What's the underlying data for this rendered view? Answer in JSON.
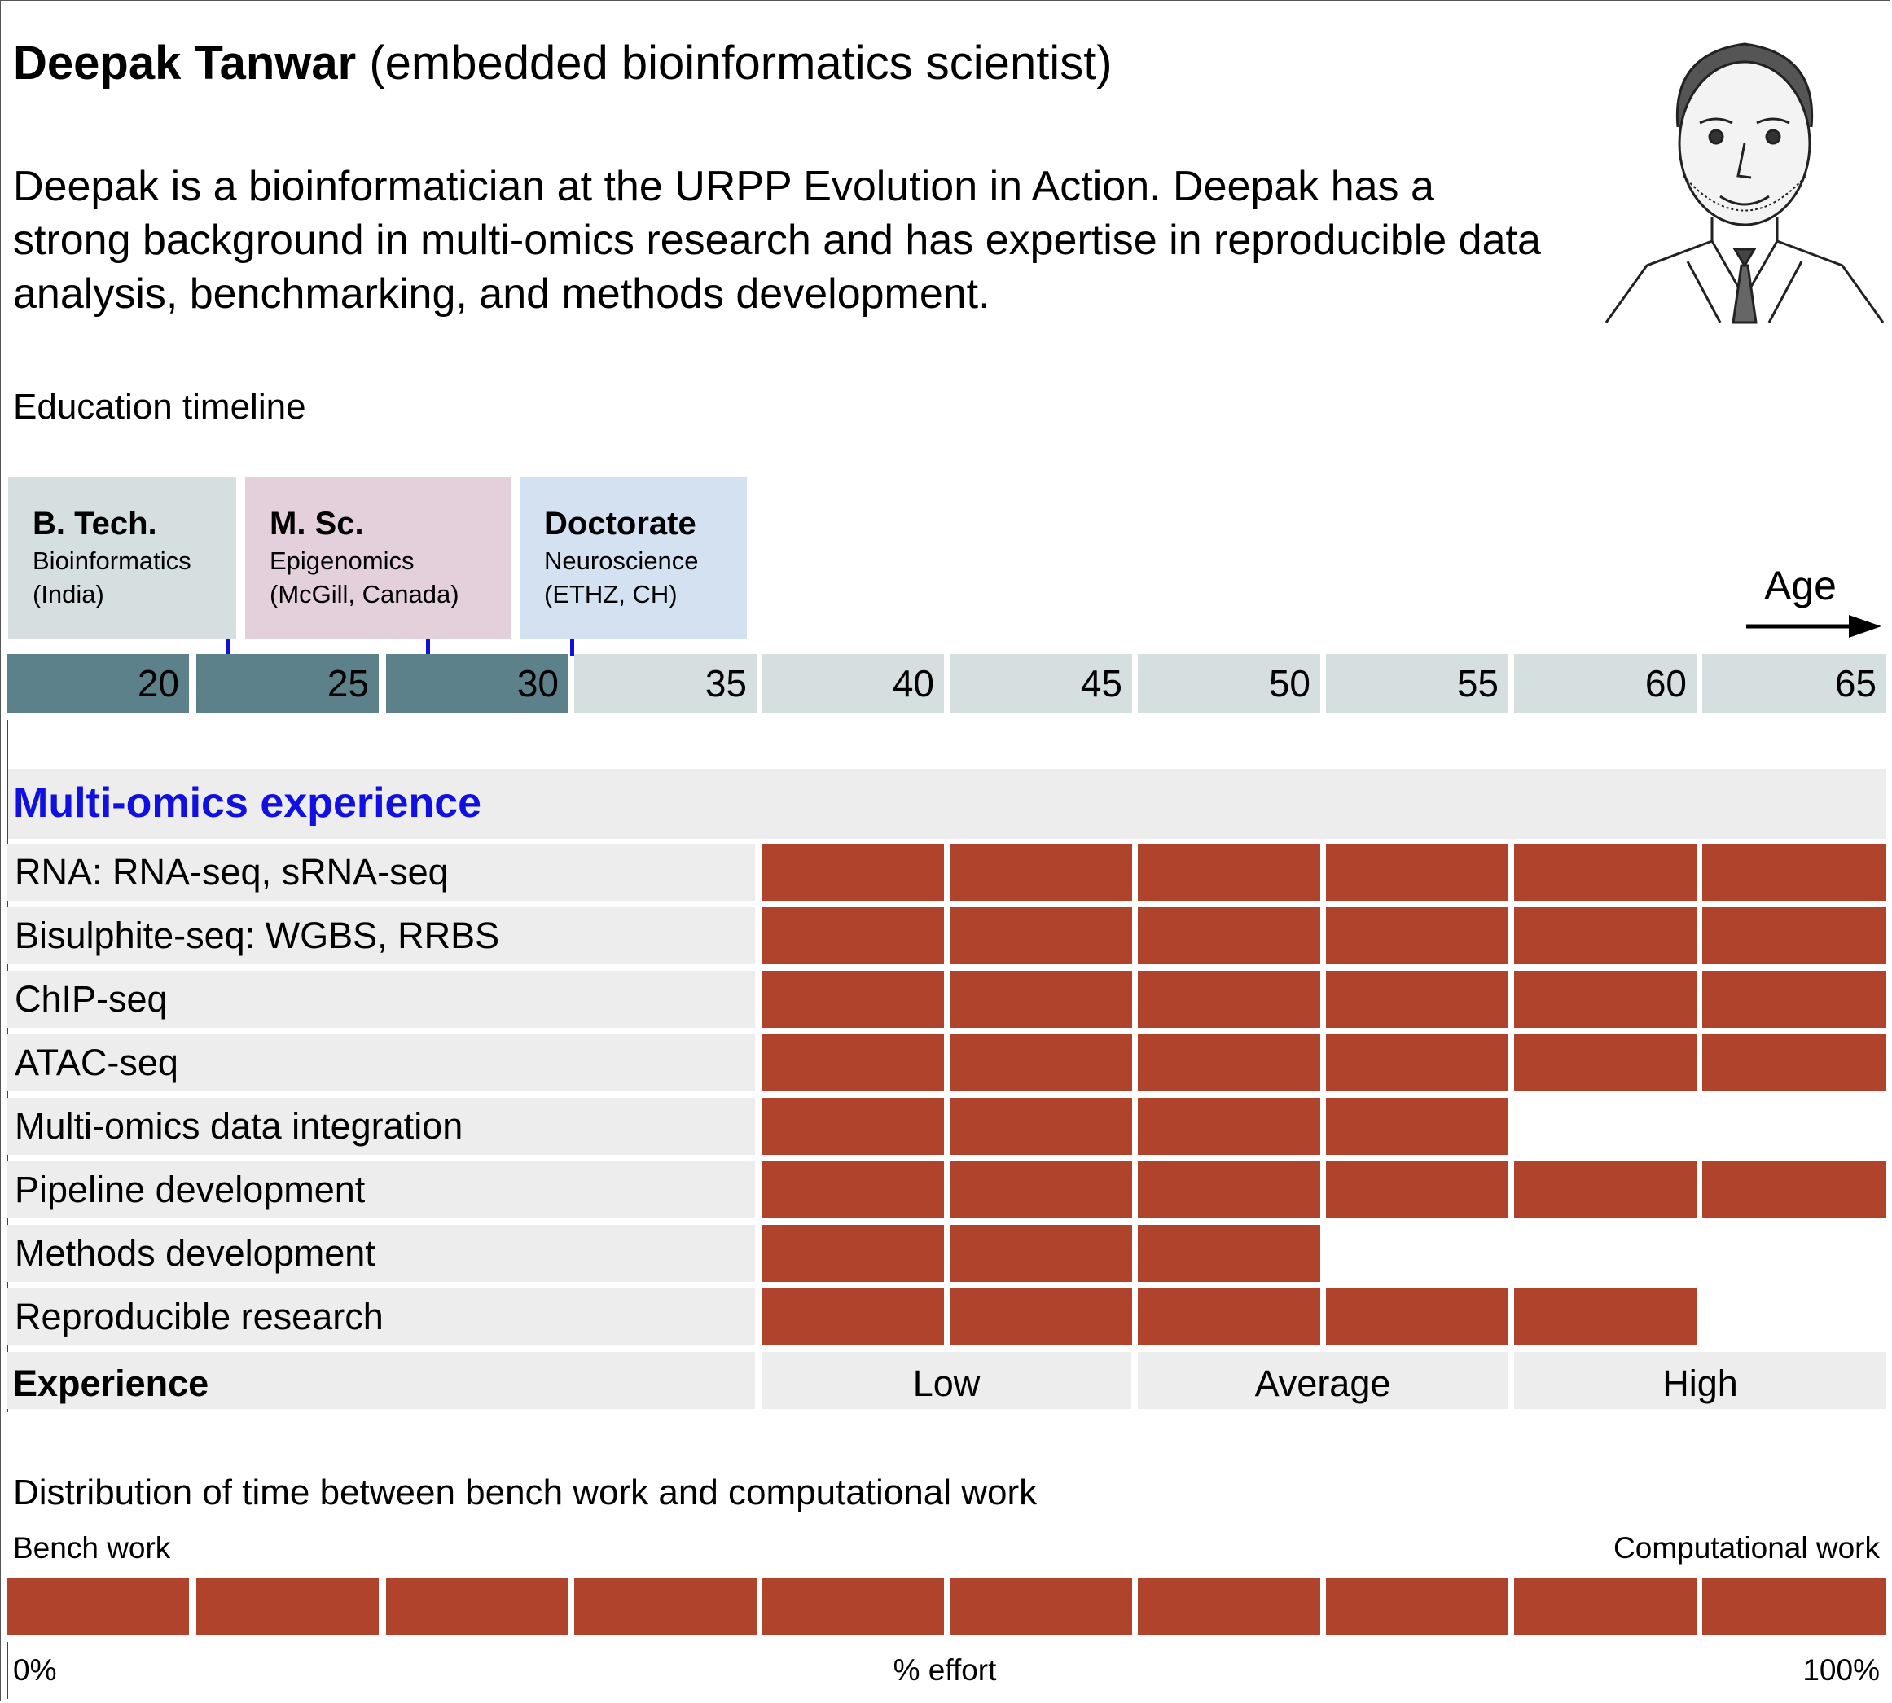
{
  "header": {
    "name": "Deepak Tanwar",
    "role": "(embedded bioinformatics scientist)",
    "bio": "Deepak is a bioinformatician at the URPP Evolution in Action. Deepak has a strong background in multi-omics research and has expertise in reproducible data analysis, benchmarking, and methods development."
  },
  "education": {
    "title": "Education timeline",
    "age_label": "Age",
    "degrees": [
      {
        "degree": "B. Tech.",
        "field": "Bioinformatics",
        "place": "(India)",
        "color": "#d5dfdf"
      },
      {
        "degree": "M. Sc.",
        "field": "Epigenomics",
        "place": "(McGill, Canada)",
        "color": "#e4d0da"
      },
      {
        "degree": "Doctorate",
        "field": "Neuroscience",
        "place": "(ETHZ, CH)",
        "color": "#d3e1f1"
      }
    ],
    "ages": [
      "20",
      "25",
      "30",
      "35",
      "40",
      "45",
      "50",
      "55",
      "60",
      "65"
    ],
    "colors": {
      "past": "#5d818a",
      "future": "#d5dfdf"
    }
  },
  "experience": {
    "title": "Multi-omics experience",
    "title_color": "#1010e0",
    "bar_color": "#b0432b",
    "skills": [
      {
        "label": "RNA: RNA-seq, sRNA-seq",
        "level": 6
      },
      {
        "label": "Bisulphite-seq: WGBS, RRBS",
        "level": 6
      },
      {
        "label": "ChIP-seq",
        "level": 6
      },
      {
        "label": "ATAC-seq",
        "level": 6
      },
      {
        "label": "Multi-omics data integration",
        "level": 4
      },
      {
        "label": "Pipeline development",
        "level": 6
      },
      {
        "label": "Methods development",
        "level": 3
      },
      {
        "label": "Reproducible research",
        "level": 5
      }
    ],
    "max_level": 6,
    "scale_label": "Experience",
    "scale": [
      "Low",
      "Average",
      "High"
    ]
  },
  "effort": {
    "title": "Distribution of time between bench work and computational work",
    "left_label": "Bench work",
    "right_label": "Computational work",
    "axis_min": "0%",
    "axis_mid": "% effort",
    "axis_max": "100%",
    "computational_fraction": 1.0
  }
}
